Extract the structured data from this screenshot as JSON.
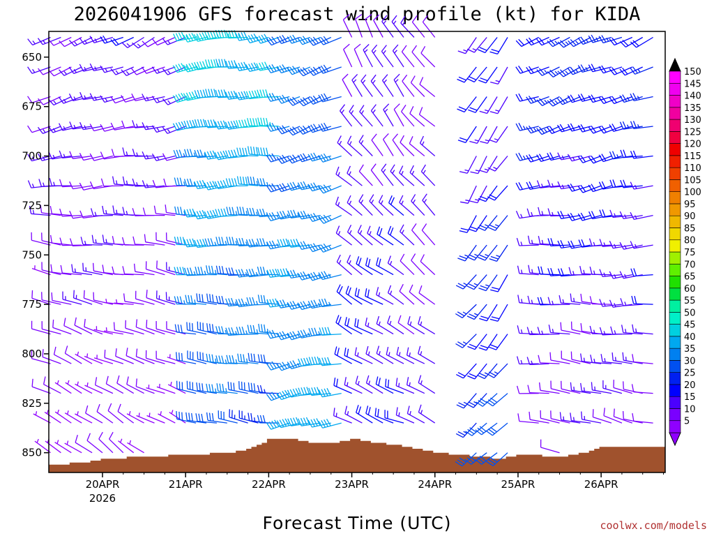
{
  "chart_data": {
    "type": "wind-barb-profile",
    "title": "2026041906 GFS forecast wind profile (kt) for KIDA",
    "xlabel": "Forecast Time (UTC)",
    "ylabel": "",
    "credit": "coolwx.com/models",
    "xlim_hours_from_20APR00Z": [
      -15.5,
      162.5
    ],
    "ylim_hPa": [
      637,
      860
    ],
    "y_ticks": [
      650,
      675,
      700,
      725,
      750,
      775,
      800,
      825,
      850
    ],
    "x_ticks": [
      {
        "hours": 0,
        "label": "20APR",
        "sublabel": "2026"
      },
      {
        "hours": 24,
        "label": "21APR"
      },
      {
        "hours": 48,
        "label": "22APR"
      },
      {
        "hours": 72,
        "label": "23APR"
      },
      {
        "hours": 96,
        "label": "24APR"
      },
      {
        "hours": 120,
        "label": "25APR"
      },
      {
        "hours": 144,
        "label": "26APR"
      }
    ],
    "pressure_levels_hPa": [
      640,
      655,
      670,
      685,
      700,
      715,
      730,
      745,
      760,
      775,
      790,
      805,
      820,
      835,
      850
    ],
    "forecast_hours_step": 3,
    "forecast_hours_range": [
      -15,
      162
    ],
    "wind_regimes": [
      {
        "from_h": -15,
        "to_h": 27,
        "dir_deg": 245,
        "upper_kt": 15,
        "lower_kt": 7,
        "veer_deg": 60
      },
      {
        "from_h": 27,
        "to_h": 54,
        "dir_deg": 260,
        "upper_kt": 44,
        "lower_kt": 28,
        "veer_deg": 20
      },
      {
        "from_h": 54,
        "to_h": 72,
        "dir_deg": 250,
        "upper_kt": 30,
        "lower_kt": 40,
        "veer_deg": 10
      },
      {
        "from_h": 72,
        "to_h": 90,
        "dir_deg": 330,
        "upper_kt": 12,
        "lower_kt": 20,
        "veer_deg": -40
      },
      {
        "from_h": 90,
        "to_h": 99,
        "dir_deg": 320,
        "upper_kt": 10,
        "lower_kt": 15,
        "veer_deg": -20
      },
      {
        "from_h": 99,
        "to_h": 108,
        "dir_deg": 0,
        "upper_kt": 0,
        "lower_kt": 0,
        "veer_deg": 0
      },
      {
        "from_h": 108,
        "to_h": 120,
        "dir_deg": 210,
        "upper_kt": 15,
        "lower_kt": 28,
        "veer_deg": 15
      },
      {
        "from_h": 120,
        "to_h": 126,
        "dir_deg": 0,
        "upper_kt": 0,
        "lower_kt": 0,
        "veer_deg": 0
      },
      {
        "from_h": 126,
        "to_h": 162,
        "dir_deg": 245,
        "upper_kt": 24,
        "lower_kt": 10,
        "veer_deg": 40
      }
    ],
    "surface_pressure_hPa": [
      {
        "h": -15,
        "p": 856
      },
      {
        "h": -6,
        "p": 855
      },
      {
        "h": 0,
        "p": 853
      },
      {
        "h": 12,
        "p": 852
      },
      {
        "h": 24,
        "p": 851
      },
      {
        "h": 36,
        "p": 850
      },
      {
        "h": 42,
        "p": 848
      },
      {
        "h": 48,
        "p": 843
      },
      {
        "h": 54,
        "p": 843
      },
      {
        "h": 60,
        "p": 845
      },
      {
        "h": 66,
        "p": 845
      },
      {
        "h": 72,
        "p": 843
      },
      {
        "h": 78,
        "p": 845
      },
      {
        "h": 84,
        "p": 846
      },
      {
        "h": 90,
        "p": 848
      },
      {
        "h": 96,
        "p": 850
      },
      {
        "h": 108,
        "p": 852
      },
      {
        "h": 114,
        "p": 853
      },
      {
        "h": 120,
        "p": 851
      },
      {
        "h": 132,
        "p": 852
      },
      {
        "h": 138,
        "p": 850
      },
      {
        "h": 144,
        "p": 847
      },
      {
        "h": 150,
        "p": 847
      },
      {
        "h": 162,
        "p": 847
      }
    ],
    "terrain_color": "#a0522d",
    "colorbar": {
      "labels": [
        "5",
        "10",
        "15",
        "20",
        "25",
        "30",
        "35",
        "40",
        "45",
        "50",
        "55",
        "60",
        "65",
        "70",
        "75",
        "80",
        "85",
        "90",
        "95",
        "100",
        "105",
        "110",
        "115",
        "120",
        "125",
        "130",
        "135",
        "140",
        "145",
        "150"
      ],
      "colors": [
        "#8f00ff",
        "#7a00ff",
        "#4b00ff",
        "#0000ff",
        "#0020f0",
        "#0050f0",
        "#0080f0",
        "#00a8f0",
        "#00d0e0",
        "#00f0c8",
        "#00f0a0",
        "#00e040",
        "#20e000",
        "#60f000",
        "#a0f000",
        "#f0f000",
        "#f0d800",
        "#f0b800",
        "#f09800",
        "#f08000",
        "#f06000",
        "#f04000",
        "#f02000",
        "#f00000",
        "#f00040",
        "#f00070",
        "#f000a0",
        "#f000c8",
        "#f000f0",
        "#ff00ff"
      ],
      "tip_top": "#000000",
      "tip_bottom": "#8f00ff"
    }
  }
}
